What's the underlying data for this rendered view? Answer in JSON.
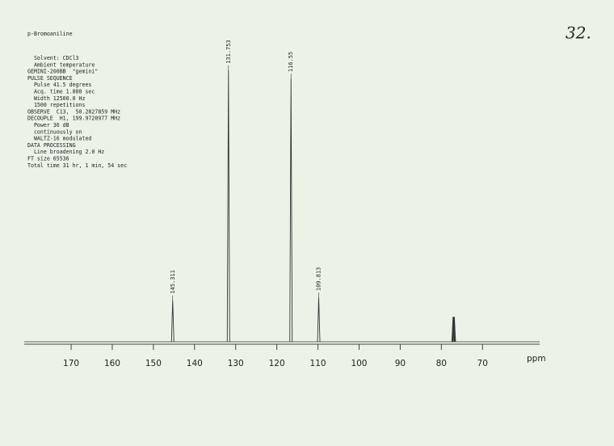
{
  "chart_data": {
    "type": "spectrum",
    "title": "p-Bromoaniline",
    "note": "32.",
    "parameters": [
      "  Solvent: CDCl3",
      "  Ambient temperature",
      "GEMINI-200BB  \"gemini\"",
      "PULSE SEQUENCE",
      "  Pulse 41.5 degrees",
      "  Acq. time 1.000 sec",
      "  Width 12500.0 Hz",
      "  1500 repetitions",
      "OBSERVE  C13,  50.2827859 MHz",
      "DECOUPLE  H1, 199.9720977 MHz",
      "  Power 36 dB",
      "  continuously on",
      "  WALTZ-16 modulated",
      "DATA PROCESSING",
      "  Line broadening 2.0 Hz",
      "FT size 65536",
      "Total time 31 hr, 1 min, 54 sec"
    ],
    "x_label": "ppm",
    "xlim": [
      181.4,
      56.1
    ],
    "xticks": [
      170,
      160,
      150,
      140,
      130,
      120,
      110,
      100,
      90,
      80,
      70
    ],
    "ylim": [
      0,
      100
    ],
    "peaks": {
      "x": [
        145.311,
        131.753,
        116.55,
        109.813
      ],
      "values": [
        15,
        98,
        95,
        16
      ]
    },
    "solvent_peaks": {
      "x": [
        77.16,
        77.0,
        76.84
      ],
      "values": [
        9,
        9,
        9
      ]
    },
    "color": "#333333"
  }
}
